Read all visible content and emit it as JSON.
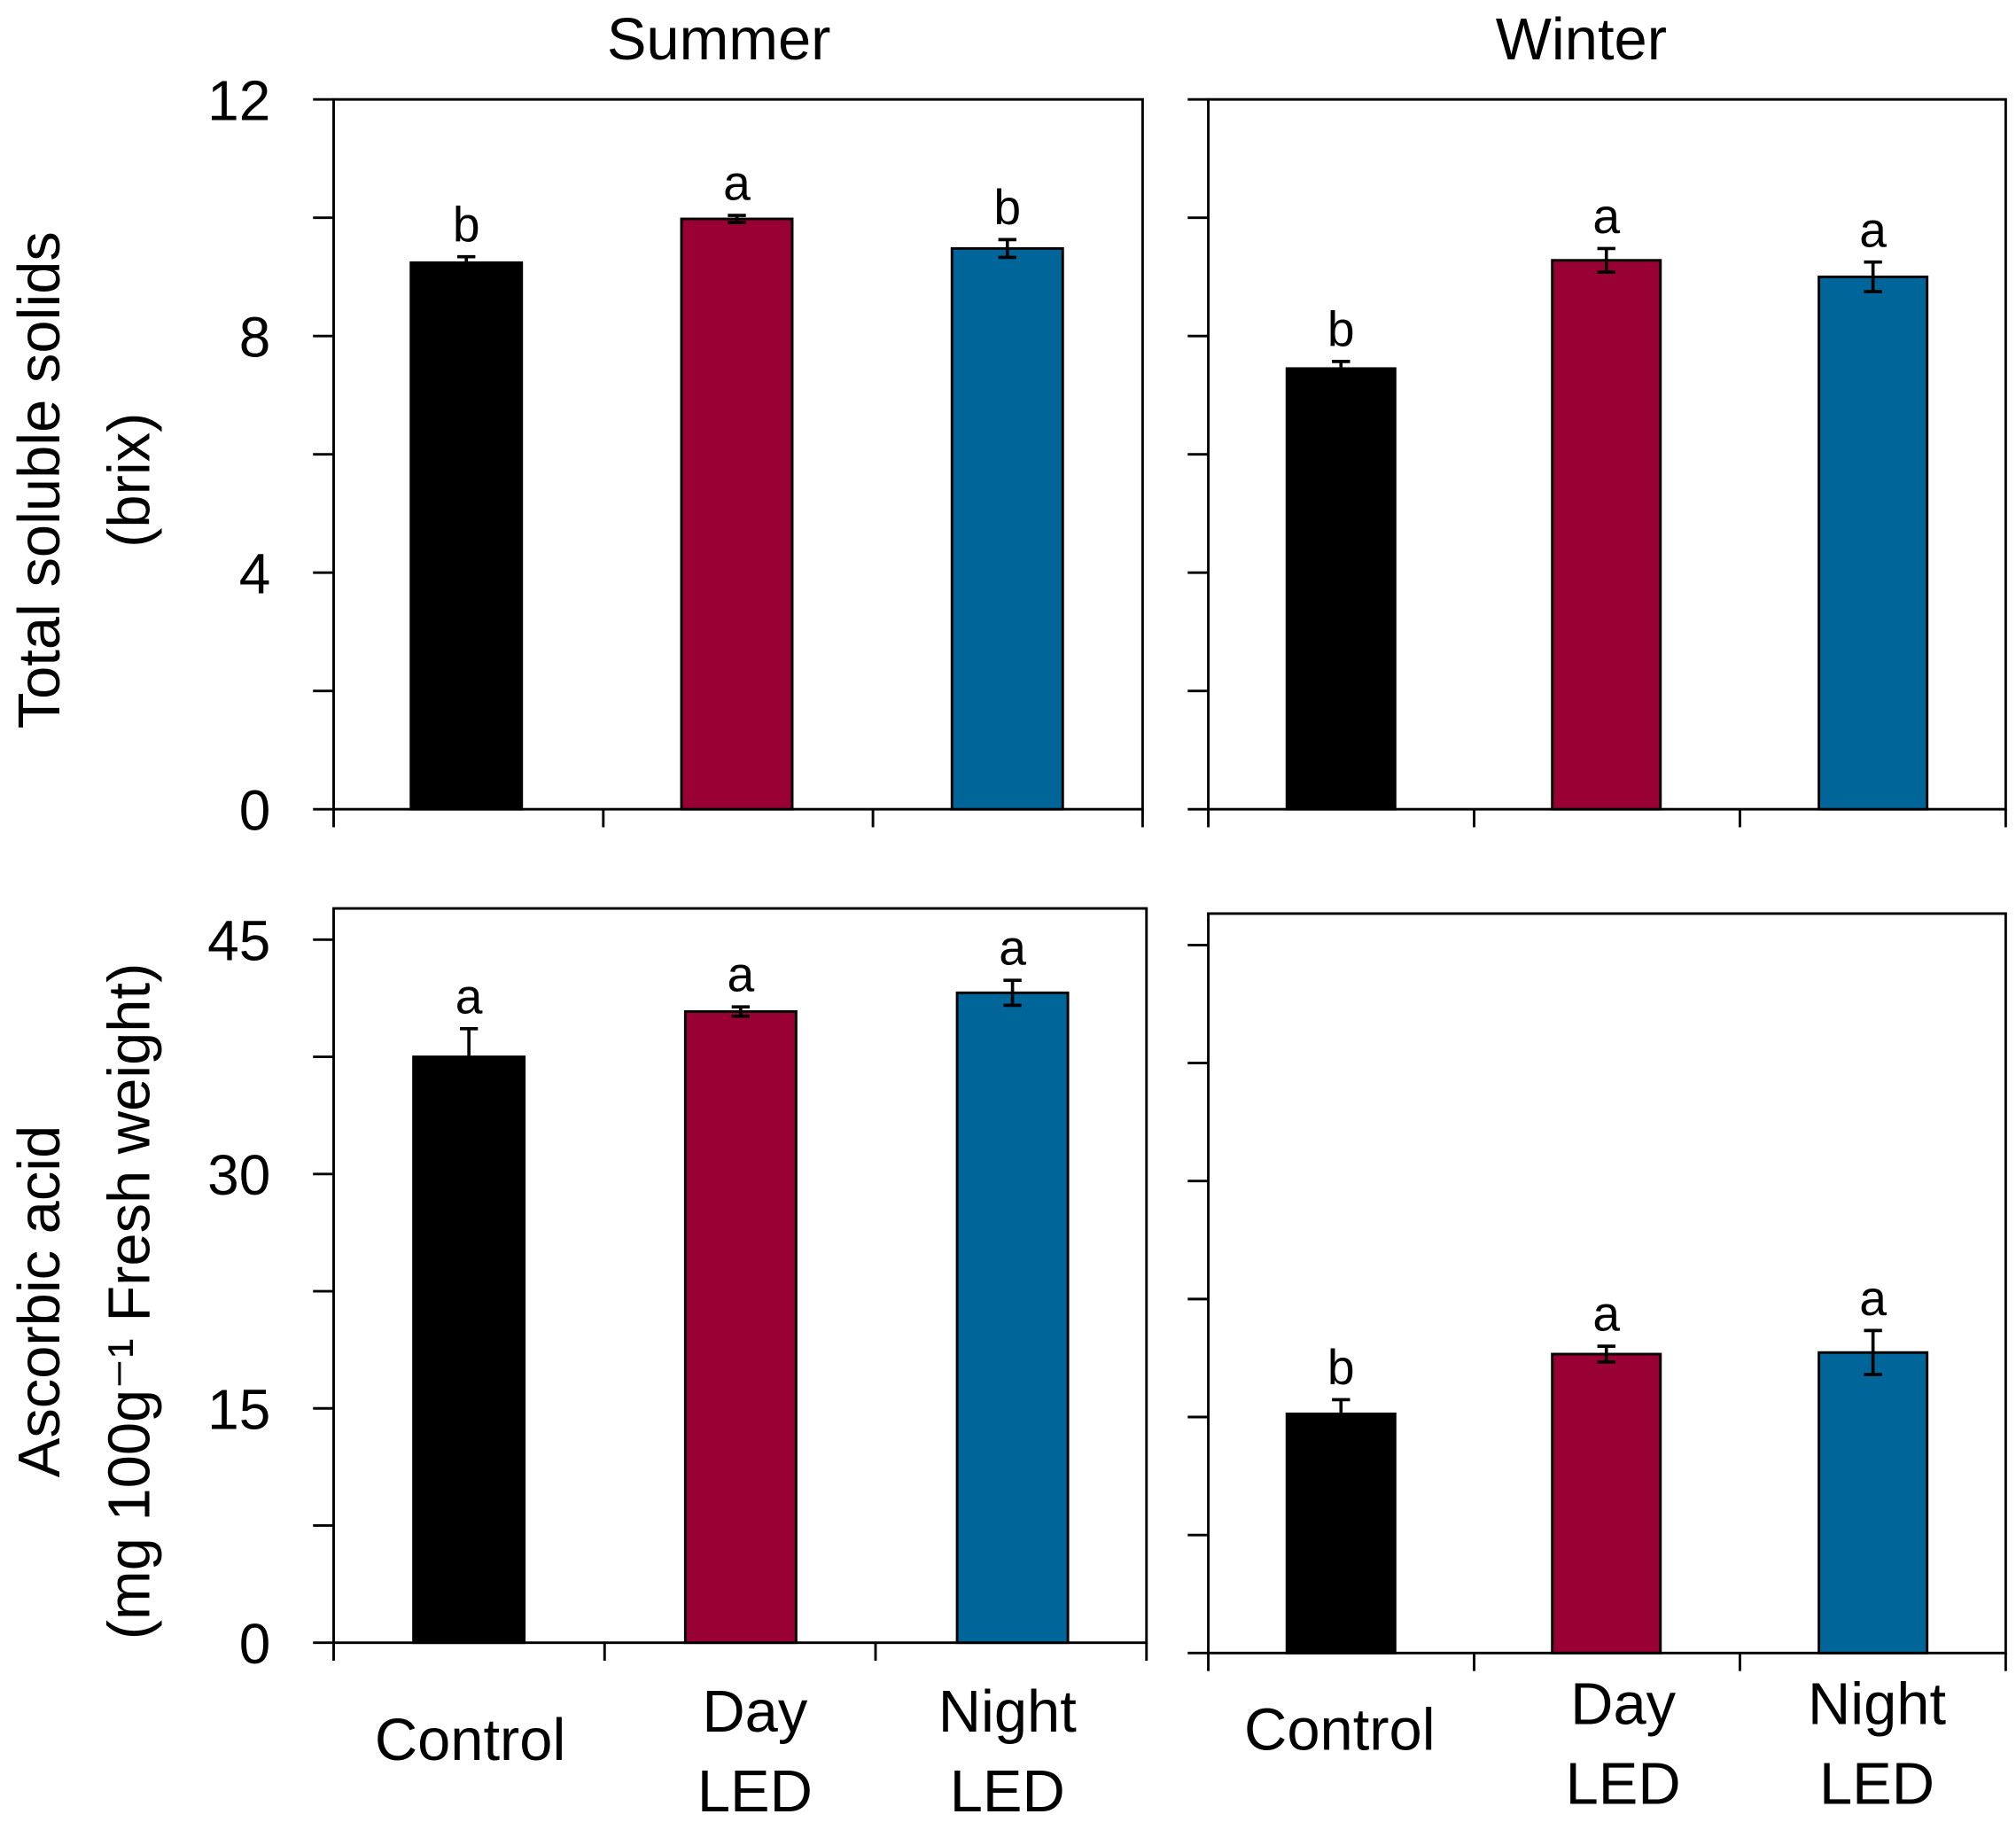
{
  "chart_data": [
    {
      "type": "bar",
      "panel": "top-left",
      "title": "Summer",
      "ylabel": [
        "Total soluble solids",
        "(brix)"
      ],
      "ylim": [
        0,
        12
      ],
      "yticks": [
        "0",
        "4",
        "8",
        "12"
      ],
      "categories": [
        [
          "Control"
        ],
        [
          "Day",
          "LED"
        ],
        [
          "Night",
          "LED"
        ]
      ],
      "values": [
        9.24,
        9.98,
        9.48
      ],
      "errors": [
        0.1,
        0.06,
        0.15
      ],
      "letters": [
        "b",
        "a",
        "b"
      ]
    },
    {
      "type": "bar",
      "panel": "top-right",
      "title": "Winter",
      "ylim": [
        0,
        12
      ],
      "categories": [
        [
          "Control"
        ],
        [
          "Day",
          "LED"
        ],
        [
          "Night",
          "LED"
        ]
      ],
      "values": [
        7.45,
        9.28,
        9.0
      ],
      "errors": [
        0.12,
        0.2,
        0.25
      ],
      "letters": [
        "b",
        "a",
        "a"
      ]
    },
    {
      "type": "bar",
      "panel": "bottom-left",
      "ylabel": [
        "Ascorbic acid",
        "(mg 100g⁻¹ Fresh weight)"
      ],
      "ylim": [
        0,
        47
      ],
      "yticks": [
        "0",
        "15",
        "30",
        "45"
      ],
      "categories": [
        [
          "Control"
        ],
        [
          "Day",
          "LED"
        ],
        [
          "Night",
          "LED"
        ]
      ],
      "values": [
        37.5,
        40.4,
        41.6
      ],
      "errors": [
        1.8,
        0.3,
        0.8
      ],
      "letters": [
        "a",
        "a",
        "a"
      ]
    },
    {
      "type": "bar",
      "panel": "bottom-right",
      "ylim": [
        0,
        47
      ],
      "categories": [
        [
          "Control"
        ],
        [
          "Day",
          "LED"
        ],
        [
          "Night",
          "LED"
        ]
      ],
      "values": [
        15.2,
        19.0,
        19.1
      ],
      "errors": [
        0.9,
        0.5,
        1.4
      ],
      "letters": [
        "b",
        "a",
        "a"
      ]
    }
  ],
  "colors": {
    "Control": "#000000",
    "Day LED": "#990033",
    "Night LED": "#006699"
  }
}
